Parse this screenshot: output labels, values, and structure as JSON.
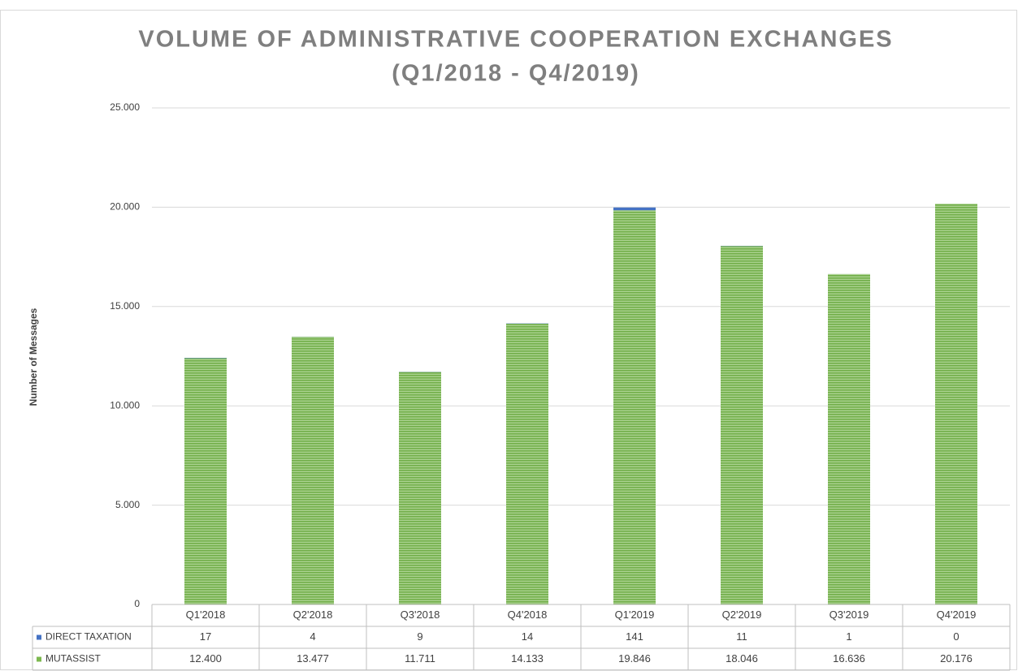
{
  "chart_data": {
    "type": "stacked_bar",
    "title": [
      "VOLUME OF ADMINISTRATIVE COOPERATION EXCHANGES",
      "(Q1/2018 - Q4/2019)"
    ],
    "y_axis_label": "Number of Messages",
    "categories": [
      "Q1'2018",
      "Q2'2018",
      "Q3'2018",
      "Q4'2018",
      "Q1'2019",
      "Q2'2019",
      "Q3'2019",
      "Q4'2019"
    ],
    "series": [
      {
        "name": "DIRECT TAXATION",
        "color": "#4472c4",
        "values": [
          17,
          4,
          9,
          14,
          141,
          11,
          1,
          0
        ]
      },
      {
        "name": "MUTASSIST",
        "color": "#7cb84f",
        "values": [
          12400,
          13477,
          11711,
          14133,
          19846,
          18046,
          16636,
          20176
        ],
        "value_labels": [
          "12.400",
          "13.477",
          "11.711",
          "14.133",
          "19.846",
          "18.046",
          "16.636",
          "20.176"
        ]
      }
    ],
    "ylim": [
      0,
      25000
    ],
    "yticks": [
      0,
      {
        "value": 5000,
        "label": "5.000"
      },
      {
        "value": 10000,
        "label": "10.000"
      },
      {
        "value": 15000,
        "label": "15.000"
      },
      {
        "value": 20000,
        "label": "20.000"
      },
      {
        "value": 25000,
        "label": "25.000"
      }
    ],
    "grid": true,
    "data_table": true
  }
}
